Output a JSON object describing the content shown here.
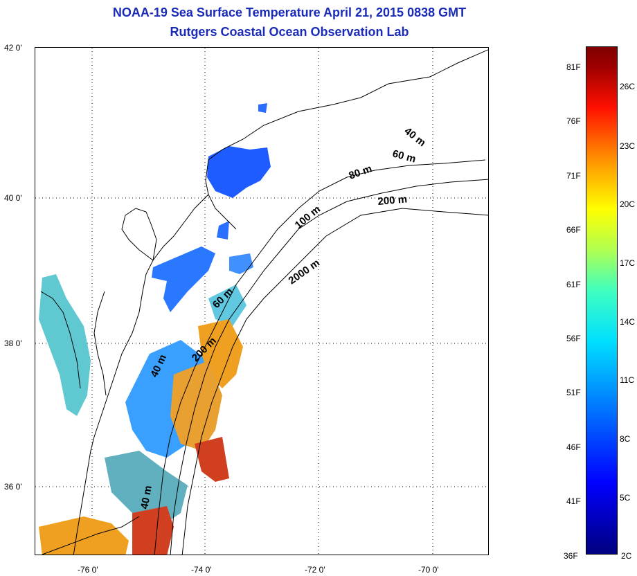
{
  "title": {
    "line1": "NOAA-19 Sea Surface Temperature April 21, 2015 0838 GMT",
    "line2": "Rutgers Coastal Ocean Observation Lab"
  },
  "axes": {
    "lat_labels": [
      "42 0'",
      "40 0'",
      "38 0'",
      "36 0'"
    ],
    "lon_labels": [
      "-76 0'",
      "-74 0'",
      "-72 0'",
      "-70 0'"
    ],
    "lat_range": [
      35,
      42
    ],
    "lon_range": [
      -77,
      -69
    ],
    "gridlines": "dotted"
  },
  "contours": [
    {
      "label": "40 m"
    },
    {
      "label": "60 m"
    },
    {
      "label": "80 m"
    },
    {
      "label": "200 m"
    },
    {
      "label": "100 m"
    },
    {
      "label": "2000 m"
    },
    {
      "label": "60 m"
    },
    {
      "label": "200 m"
    },
    {
      "label": "40 m"
    },
    {
      "label": "40 m"
    }
  ],
  "colorbar": {
    "fahrenheit": [
      "81F",
      "76F",
      "71F",
      "66F",
      "61F",
      "56F",
      "51F",
      "46F",
      "41F",
      "36F"
    ],
    "celsius": [
      "26C",
      "23C",
      "20C",
      "17C",
      "14C",
      "11C",
      "8C",
      "5C",
      "2C"
    ],
    "range_F": [
      36,
      83
    ],
    "range_C": [
      2,
      28
    ],
    "colormap": "jet"
  },
  "colors": {
    "title": "#1a2bb8",
    "land_outline": "#000000",
    "cold": "#0040ff",
    "cool": "#40c0ff",
    "mild": "#7ad9a0",
    "warm": "#f0a020",
    "hot": "#d01010"
  }
}
